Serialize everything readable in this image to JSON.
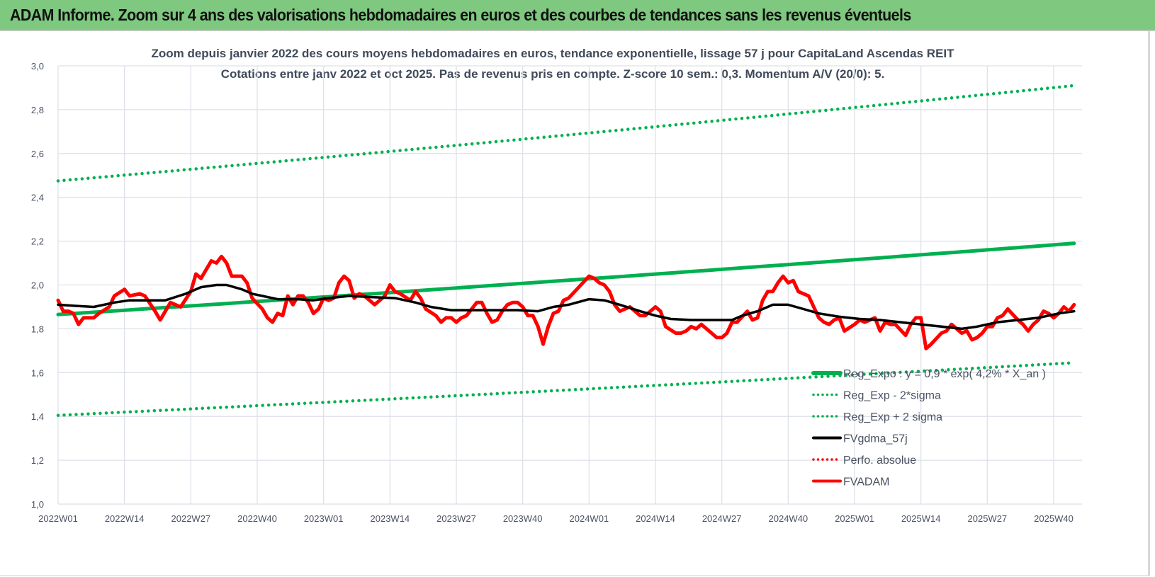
{
  "header": {
    "title": "ADAM Informe. Zoom sur 4 ans des valorisations hebdomadaires en euros et des courbes de tendances sans les revenus éventuels"
  },
  "chart_data": {
    "type": "line",
    "title": "Zoom depuis janvier 2022 des cours moyens hebdomadaires en euros, tendance exponentielle, lissage 57 j pour CapitaLand Ascendas REIT",
    "subtitle": "Cotations entre janv 2022 et oct 2025. Pas de revenus pris en compte. Z-score 10 sem.: 0,3. Momentum A/V (20/0): 5.",
    "xlabel": "",
    "ylabel": "",
    "ylim": [
      1.0,
      3.0
    ],
    "y_ticks": [
      "1,0",
      "1,2",
      "1,4",
      "1,6",
      "1,8",
      "2,0",
      "2,2",
      "2,4",
      "2,6",
      "2,8",
      "3,0"
    ],
    "x_ticks": [
      "2022W01",
      "2022W14",
      "2022W27",
      "2022W40",
      "2023W01",
      "2023W14",
      "2023W27",
      "2023W40",
      "2024W01",
      "2024W14",
      "2024W27",
      "2024W40",
      "2025W01",
      "2025W14",
      "2025W27",
      "2025W40"
    ],
    "x_range": [
      "2022W01",
      "2025W44"
    ],
    "grid": true,
    "legend_position": "bottom-right",
    "series": [
      {
        "name": "Reg_Expo : y = 0,9 * exp( 4,2% * X_an )",
        "color": "#00b050",
        "style": "solid",
        "start": 1.865,
        "end": 2.19
      },
      {
        "name": "Reg_Exp - 2*sigma",
        "color": "#00b050",
        "style": "dotted",
        "start": 1.405,
        "end": 1.645
      },
      {
        "name": "Reg_Exp + 2 sigma",
        "color": "#00b050",
        "style": "dotted",
        "start": 2.475,
        "end": 2.91
      },
      {
        "name": "FVgdma_57j",
        "color": "#000000",
        "style": "solid",
        "points": [
          [
            "2022W01",
            1.91
          ],
          [
            "2022W04",
            1.905
          ],
          [
            "2022W08",
            1.9
          ],
          [
            "2022W12",
            1.92
          ],
          [
            "2022W15",
            1.93
          ],
          [
            "2022W20",
            1.93
          ],
          [
            "2022W22",
            1.93
          ],
          [
            "2022W26",
            1.96
          ],
          [
            "2022W29",
            1.99
          ],
          [
            "2022W32",
            2.0
          ],
          [
            "2022W34",
            2.0
          ],
          [
            "2022W37",
            1.98
          ],
          [
            "2022W39",
            1.96
          ],
          [
            "2022W41",
            1.95
          ],
          [
            "2022W44",
            1.935
          ],
          [
            "2022W48",
            1.935
          ],
          [
            "2022W51",
            1.93
          ],
          [
            "2023W02",
            1.94
          ],
          [
            "2023W06",
            1.95
          ],
          [
            "2023W10",
            1.945
          ],
          [
            "2023W15",
            1.94
          ],
          [
            "2023W19",
            1.92
          ],
          [
            "2023W22",
            1.9
          ],
          [
            "2023W26",
            1.885
          ],
          [
            "2023W29",
            1.885
          ],
          [
            "2023W34",
            1.885
          ],
          [
            "2023W39",
            1.885
          ],
          [
            "2023W43",
            1.88
          ],
          [
            "2023W46",
            1.9
          ],
          [
            "2023W49",
            1.91
          ],
          [
            "2024W01",
            1.935
          ],
          [
            "2024W04",
            1.93
          ],
          [
            "2024W07",
            1.91
          ],
          [
            "2024W11",
            1.88
          ],
          [
            "2024W14",
            1.86
          ],
          [
            "2024W17",
            1.845
          ],
          [
            "2024W21",
            1.84
          ],
          [
            "2024W25",
            1.84
          ],
          [
            "2024W29",
            1.84
          ],
          [
            "2024W31",
            1.86
          ],
          [
            "2024W34",
            1.88
          ],
          [
            "2024W37",
            1.91
          ],
          [
            "2024W40",
            1.91
          ],
          [
            "2024W43",
            1.89
          ],
          [
            "2024W46",
            1.87
          ],
          [
            "2024W50",
            1.855
          ],
          [
            "2025W02",
            1.845
          ],
          [
            "2025W06",
            1.84
          ],
          [
            "2025W10",
            1.83
          ],
          [
            "2025W14",
            1.82
          ],
          [
            "2025W18",
            1.81
          ],
          [
            "2025W22",
            1.8
          ],
          [
            "2025W25",
            1.81
          ],
          [
            "2025W29",
            1.83
          ],
          [
            "2025W33",
            1.84
          ],
          [
            "2025W37",
            1.85
          ],
          [
            "2025W41",
            1.87
          ],
          [
            "2025W44",
            1.88
          ]
        ]
      },
      {
        "name": "Perfo. absolue",
        "color": "#ff0000",
        "style": "dotted",
        "points": []
      },
      {
        "name": "FVADAM",
        "color": "#ff0000",
        "style": "solid",
        "points": [
          [
            "2022W01",
            1.93
          ],
          [
            "2022W02",
            1.88
          ],
          [
            "2022W03",
            1.88
          ],
          [
            "2022W04",
            1.87
          ],
          [
            "2022W05",
            1.82
          ],
          [
            "2022W06",
            1.85
          ],
          [
            "2022W08",
            1.85
          ],
          [
            "2022W09",
            1.87
          ],
          [
            "2022W11",
            1.9
          ],
          [
            "2022W12",
            1.95
          ],
          [
            "2022W14",
            1.98
          ],
          [
            "2022W15",
            1.95
          ],
          [
            "2022W17",
            1.96
          ],
          [
            "2022W18",
            1.95
          ],
          [
            "2022W20",
            1.88
          ],
          [
            "2022W21",
            1.84
          ],
          [
            "2022W23",
            1.92
          ],
          [
            "2022W25",
            1.9
          ],
          [
            "2022W27",
            1.97
          ],
          [
            "2022W28",
            2.05
          ],
          [
            "2022W29",
            2.03
          ],
          [
            "2022W31",
            2.11
          ],
          [
            "2022W32",
            2.1
          ],
          [
            "2022W33",
            2.13
          ],
          [
            "2022W34",
            2.1
          ],
          [
            "2022W35",
            2.04
          ],
          [
            "2022W36",
            2.04
          ],
          [
            "2022W37",
            2.04
          ],
          [
            "2022W38",
            2.01
          ],
          [
            "2022W39",
            1.94
          ],
          [
            "2022W41",
            1.89
          ],
          [
            "2022W42",
            1.85
          ],
          [
            "2022W43",
            1.83
          ],
          [
            "2022W44",
            1.87
          ],
          [
            "2022W45",
            1.86
          ],
          [
            "2022W46",
            1.95
          ],
          [
            "2022W47",
            1.91
          ],
          [
            "2022W48",
            1.95
          ],
          [
            "2022W49",
            1.95
          ],
          [
            "2022W50",
            1.92
          ],
          [
            "2022W51",
            1.87
          ],
          [
            "2022W52",
            1.89
          ],
          [
            "2023W01",
            1.94
          ],
          [
            "2023W02",
            1.93
          ],
          [
            "2023W03",
            1.94
          ],
          [
            "2023W04",
            2.01
          ],
          [
            "2023W05",
            2.04
          ],
          [
            "2023W06",
            2.02
          ],
          [
            "2023W07",
            1.94
          ],
          [
            "2023W08",
            1.96
          ],
          [
            "2023W09",
            1.95
          ],
          [
            "2023W11",
            1.91
          ],
          [
            "2023W12",
            1.93
          ],
          [
            "2023W13",
            1.95
          ],
          [
            "2023W14",
            2.0
          ],
          [
            "2023W15",
            1.97
          ],
          [
            "2023W16",
            1.96
          ],
          [
            "2023W18",
            1.93
          ],
          [
            "2023W19",
            1.97
          ],
          [
            "2023W20",
            1.94
          ],
          [
            "2023W21",
            1.89
          ],
          [
            "2023W23",
            1.86
          ],
          [
            "2023W24",
            1.83
          ],
          [
            "2023W25",
            1.85
          ],
          [
            "2023W26",
            1.85
          ],
          [
            "2023W27",
            1.83
          ],
          [
            "2023W28",
            1.85
          ],
          [
            "2023W29",
            1.86
          ],
          [
            "2023W30",
            1.89
          ],
          [
            "2023W31",
            1.92
          ],
          [
            "2023W32",
            1.92
          ],
          [
            "2023W33",
            1.87
          ],
          [
            "2023W34",
            1.83
          ],
          [
            "2023W35",
            1.84
          ],
          [
            "2023W36",
            1.88
          ],
          [
            "2023W37",
            1.91
          ],
          [
            "2023W38",
            1.92
          ],
          [
            "2023W39",
            1.92
          ],
          [
            "2023W40",
            1.9
          ],
          [
            "2023W41",
            1.86
          ],
          [
            "2023W42",
            1.86
          ],
          [
            "2023W43",
            1.81
          ],
          [
            "2023W44",
            1.73
          ],
          [
            "2023W45",
            1.81
          ],
          [
            "2023W46",
            1.87
          ],
          [
            "2023W47",
            1.88
          ],
          [
            "2023W48",
            1.93
          ],
          [
            "2023W49",
            1.94
          ],
          [
            "2023W51",
            1.99
          ],
          [
            "2024W01",
            2.04
          ],
          [
            "2024W02",
            2.03
          ],
          [
            "2024W03",
            2.01
          ],
          [
            "2024W04",
            2.0
          ],
          [
            "2024W05",
            1.97
          ],
          [
            "2024W06",
            1.91
          ],
          [
            "2024W07",
            1.88
          ],
          [
            "2024W09",
            1.9
          ],
          [
            "2024W10",
            1.88
          ],
          [
            "2024W11",
            1.86
          ],
          [
            "2024W12",
            1.86
          ],
          [
            "2024W14",
            1.9
          ],
          [
            "2024W15",
            1.88
          ],
          [
            "2024W16",
            1.81
          ],
          [
            "2024W18",
            1.78
          ],
          [
            "2024W19",
            1.78
          ],
          [
            "2024W20",
            1.79
          ],
          [
            "2024W21",
            1.81
          ],
          [
            "2024W22",
            1.8
          ],
          [
            "2024W23",
            1.82
          ],
          [
            "2024W25",
            1.78
          ],
          [
            "2024W26",
            1.76
          ],
          [
            "2024W27",
            1.76
          ],
          [
            "2024W28",
            1.78
          ],
          [
            "2024W29",
            1.83
          ],
          [
            "2024W30",
            1.83
          ],
          [
            "2024W32",
            1.88
          ],
          [
            "2024W33",
            1.84
          ],
          [
            "2024W34",
            1.85
          ],
          [
            "2024W35",
            1.93
          ],
          [
            "2024W36",
            1.97
          ],
          [
            "2024W37",
            1.97
          ],
          [
            "2024W38",
            2.01
          ],
          [
            "2024W39",
            2.04
          ],
          [
            "2024W40",
            2.01
          ],
          [
            "2024W41",
            2.02
          ],
          [
            "2024W42",
            1.97
          ],
          [
            "2024W43",
            1.96
          ],
          [
            "2024W44",
            1.95
          ],
          [
            "2024W45",
            1.9
          ],
          [
            "2024W46",
            1.85
          ],
          [
            "2024W47",
            1.83
          ],
          [
            "2024W48",
            1.82
          ],
          [
            "2024W49",
            1.84
          ],
          [
            "2024W50",
            1.85
          ],
          [
            "2024W51",
            1.79
          ],
          [
            "2025W01",
            1.82
          ],
          [
            "2025W02",
            1.84
          ],
          [
            "2025W03",
            1.83
          ],
          [
            "2025W05",
            1.85
          ],
          [
            "2025W06",
            1.79
          ],
          [
            "2025W07",
            1.83
          ],
          [
            "2025W08",
            1.82
          ],
          [
            "2025W09",
            1.82
          ],
          [
            "2025W11",
            1.77
          ],
          [
            "2025W12",
            1.82
          ],
          [
            "2025W13",
            1.85
          ],
          [
            "2025W14",
            1.85
          ],
          [
            "2025W15",
            1.71
          ],
          [
            "2025W16",
            1.73
          ],
          [
            "2025W18",
            1.78
          ],
          [
            "2025W19",
            1.79
          ],
          [
            "2025W20",
            1.82
          ],
          [
            "2025W21",
            1.8
          ],
          [
            "2025W22",
            1.78
          ],
          [
            "2025W23",
            1.79
          ],
          [
            "2025W24",
            1.75
          ],
          [
            "2025W25",
            1.76
          ],
          [
            "2025W26",
            1.78
          ],
          [
            "2025W27",
            1.81
          ],
          [
            "2025W28",
            1.81
          ],
          [
            "2025W29",
            1.85
          ],
          [
            "2025W30",
            1.86
          ],
          [
            "2025W31",
            1.89
          ],
          [
            "2025W33",
            1.84
          ],
          [
            "2025W34",
            1.82
          ],
          [
            "2025W35",
            1.79
          ],
          [
            "2025W36",
            1.82
          ],
          [
            "2025W37",
            1.84
          ],
          [
            "2025W38",
            1.88
          ],
          [
            "2025W39",
            1.87
          ],
          [
            "2025W40",
            1.85
          ],
          [
            "2025W41",
            1.87
          ],
          [
            "2025W42",
            1.9
          ],
          [
            "2025W43",
            1.88
          ],
          [
            "2025W44",
            1.91
          ]
        ]
      }
    ]
  }
}
